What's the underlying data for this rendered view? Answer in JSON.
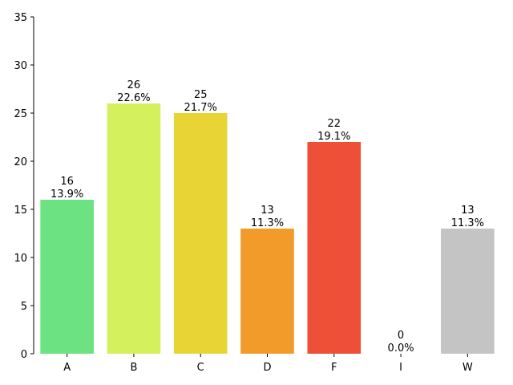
{
  "chart_data": {
    "type": "bar",
    "categories": [
      "A",
      "B",
      "C",
      "D",
      "F",
      "I",
      "W"
    ],
    "values": [
      16,
      26,
      25,
      13,
      22,
      0,
      13
    ],
    "percent_labels": [
      "13.9%",
      "22.6%",
      "21.7%",
      "11.3%",
      "19.1%",
      "0.0%",
      "11.3%"
    ],
    "colors": [
      "#6ce283",
      "#d5f05d",
      "#e8d535",
      "#f29b2a",
      "#ed4f37",
      "#aaaaaa",
      "#c4c4c4"
    ],
    "ylim": [
      0,
      35
    ],
    "yticks": [
      0,
      5,
      10,
      15,
      20,
      25,
      30,
      35
    ],
    "title": "",
    "xlabel": "",
    "ylabel": "",
    "grid": false,
    "legend": "none"
  }
}
